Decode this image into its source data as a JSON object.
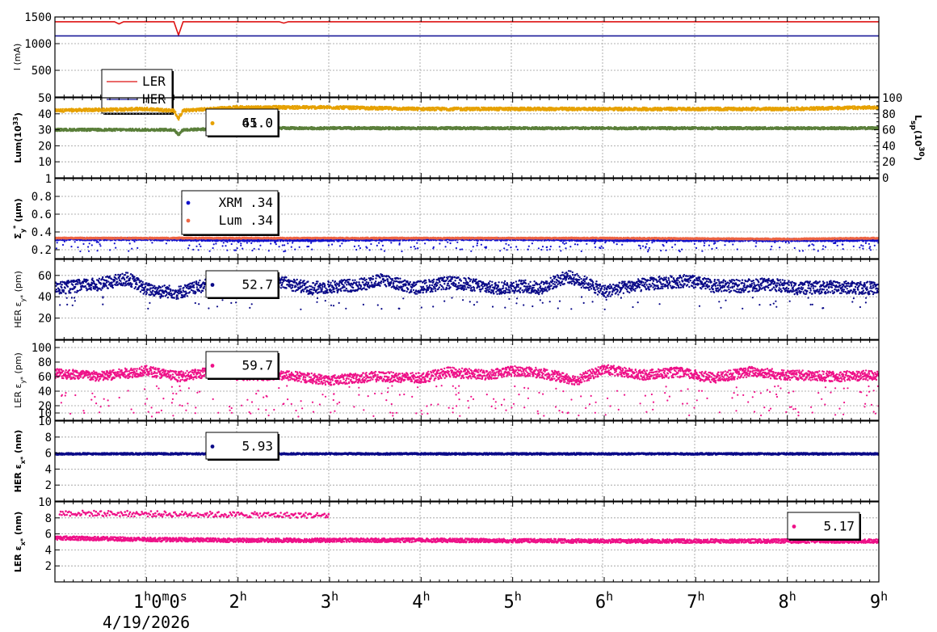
{
  "chart_data": [
    {
      "type": "line",
      "ylabel": "I (mA)",
      "ylim": [
        0,
        1500
      ],
      "yticks": [
        500,
        1000,
        1500
      ],
      "ytick_labels": [
        "500",
        "1000",
        "1500"
      ],
      "legend": {
        "placement": "bottom-left",
        "entries": [
          {
            "label": "LER",
            "color": "#dd1111"
          },
          {
            "label": "HER",
            "color": "#1a1a99"
          }
        ]
      },
      "series": [
        {
          "name": "LER",
          "color": "#dd1111",
          "points": [
            [
              0,
              1410
            ],
            [
              0.65,
              1410
            ],
            [
              0.7,
              1370
            ],
            [
              0.75,
              1410
            ],
            [
              1.3,
              1410
            ],
            [
              1.35,
              1160
            ],
            [
              1.4,
              1410
            ],
            [
              2.45,
              1410
            ],
            [
              2.5,
              1385
            ],
            [
              2.55,
              1410
            ],
            [
              9,
              1410
            ]
          ]
        },
        {
          "name": "HER",
          "color": "#1a1a99",
          "points": [
            [
              0,
              1145
            ],
            [
              9,
              1145
            ]
          ]
        }
      ]
    },
    {
      "type": "scatter",
      "ylabel": "Lum(10",
      "ylabel_sup": "33",
      "ylabel_end": ")",
      "ylim": [
        0,
        50
      ],
      "yticks": [
        10,
        20,
        30,
        40,
        50
      ],
      "ytick_labels": [
        "10",
        "20",
        "30",
        "40",
        "50"
      ],
      "y2label": "L",
      "y2label_sub": "sp",
      "y2label_mid": "(10",
      "y2label_sup": "30",
      "y2label_end": ")",
      "y2lim": [
        0,
        100
      ],
      "y2ticks": [
        0,
        20,
        40,
        60,
        80,
        100
      ],
      "y2tick_labels": [
        "0",
        "20",
        "40",
        "60",
        "80",
        "100"
      ],
      "legend": {
        "placement": "top-center",
        "entries": [
          {
            "label": "65.0",
            "color": "#e6a100"
          },
          {
            "label": "41.0",
            "color": "#e6a100"
          }
        ]
      },
      "series": [
        {
          "name": "65.0",
          "color": "#e6a100",
          "points": [
            [
              0,
              42
            ],
            [
              1,
              43
            ],
            [
              1.3,
              42
            ],
            [
              1.35,
              37
            ],
            [
              1.4,
              42
            ],
            [
              2,
              44
            ],
            [
              3,
              44
            ],
            [
              4,
              43
            ],
            [
              5,
              43
            ],
            [
              6,
              43
            ],
            [
              7,
              43
            ],
            [
              8,
              43
            ],
            [
              9,
              44
            ]
          ]
        },
        {
          "name": "41.0",
          "color": "#5a7f3a",
          "points": [
            [
              0,
              30
            ],
            [
              1,
              30
            ],
            [
              1.3,
              30
            ],
            [
              1.35,
              27
            ],
            [
              1.4,
              30
            ],
            [
              2,
              31
            ],
            [
              3,
              31
            ],
            [
              4,
              31
            ],
            [
              5,
              31
            ],
            [
              6,
              31
            ],
            [
              7,
              31
            ],
            [
              8,
              31
            ],
            [
              9,
              31
            ]
          ]
        }
      ]
    },
    {
      "type": "scatter",
      "ylabel": "Σ",
      "ylabel_sub": "y",
      "ylabel_sup": "*",
      "ylabel_end": " (μm)",
      "ylim": [
        0.1,
        1.0
      ],
      "yticks": [
        0.2,
        0.4,
        0.6,
        0.8,
        1.0
      ],
      "ytick_labels": [
        "0.2",
        "0.4",
        "0.6",
        "0.8",
        "1"
      ],
      "legend": {
        "placement": "top-center",
        "entries": [
          {
            "label": "XRM  .34",
            "color": "#1111cc"
          },
          {
            "label": "Lum  .34",
            "color": "#ee6644"
          }
        ]
      },
      "series": [
        {
          "name": "XRM  .34",
          "color": "#1111cc",
          "points": [
            [
              0,
              0.32
            ],
            [
              1,
              0.32
            ],
            [
              2,
              0.31
            ],
            [
              3,
              0.31
            ],
            [
              4,
              0.32
            ],
            [
              5,
              0.32
            ],
            [
              6,
              0.31
            ],
            [
              7,
              0.31
            ],
            [
              8,
              0.31
            ],
            [
              9,
              0.31
            ]
          ]
        },
        {
          "name": "Lum  .34",
          "color": "#ee6644",
          "points": [
            [
              0,
              0.33
            ],
            [
              2,
              0.33
            ],
            [
              4,
              0.33
            ],
            [
              6,
              0.33
            ],
            [
              8,
              0.32
            ],
            [
              9,
              0.33
            ]
          ]
        }
      ]
    },
    {
      "type": "scatter",
      "ylabel": "HER ε",
      "ylabel_sub": "y*",
      "ylabel_end": " (pm)",
      "ylim": [
        0,
        75
      ],
      "yticks": [
        20,
        40,
        60
      ],
      "ytick_labels": [
        "20",
        "40",
        "60"
      ],
      "legend": {
        "placement": "top-center",
        "entries": [
          {
            "label": "52.7",
            "color": "#0a0a88"
          }
        ]
      },
      "series": [
        {
          "name": "52.7",
          "color": "#0a0a88",
          "points": [
            [
              0,
              48
            ],
            [
              0.5,
              52
            ],
            [
              0.8,
              57
            ],
            [
              1.0,
              47
            ],
            [
              1.35,
              44
            ],
            [
              1.7,
              52
            ],
            [
              2.2,
              50
            ],
            [
              2.5,
              53
            ],
            [
              2.8,
              48
            ],
            [
              3.3,
              51
            ],
            [
              3.6,
              56
            ],
            [
              3.9,
              48
            ],
            [
              4.3,
              53
            ],
            [
              4.5,
              52
            ],
            [
              4.8,
              48
            ],
            [
              5.1,
              50
            ],
            [
              5.3,
              48
            ],
            [
              5.6,
              59
            ],
            [
              5.8,
              53
            ],
            [
              6.0,
              45
            ],
            [
              6.3,
              50
            ],
            [
              6.6,
              53
            ],
            [
              6.9,
              55
            ],
            [
              7.2,
              50
            ],
            [
              7.5,
              50
            ],
            [
              7.8,
              52
            ],
            [
              8.1,
              48
            ],
            [
              8.5,
              49
            ],
            [
              9.0,
              48
            ]
          ]
        }
      ]
    },
    {
      "type": "scatter",
      "ylabel": "LER ε",
      "ylabel_sub": "y*",
      "ylabel_end": " (pm)",
      "ylim": [
        0,
        110
      ],
      "yticks": [
        10,
        20,
        40,
        60,
        80,
        100
      ],
      "ytick_labels": [
        "10",
        "20",
        "40",
        "60",
        "80",
        "100"
      ],
      "legend": {
        "placement": "top-center",
        "entries": [
          {
            "label": "59.7",
            "color": "#ee1188"
          }
        ]
      },
      "series": [
        {
          "name": "59.7",
          "color": "#ee1188",
          "points": [
            [
              0,
              65
            ],
            [
              0.5,
              60
            ],
            [
              0.8,
              65
            ],
            [
              1.0,
              68
            ],
            [
              1.35,
              60
            ],
            [
              1.7,
              66
            ],
            [
              2.0,
              62
            ],
            [
              2.5,
              62
            ],
            [
              3.0,
              55
            ],
            [
              3.5,
              60
            ],
            [
              4.0,
              58
            ],
            [
              4.3,
              66
            ],
            [
              4.7,
              62
            ],
            [
              5.0,
              68
            ],
            [
              5.3,
              65
            ],
            [
              5.7,
              55
            ],
            [
              6.0,
              70
            ],
            [
              6.4,
              62
            ],
            [
              6.8,
              66
            ],
            [
              7.2,
              58
            ],
            [
              7.6,
              67
            ],
            [
              8.0,
              62
            ],
            [
              8.5,
              60
            ],
            [
              9.0,
              62
            ]
          ]
        }
      ]
    },
    {
      "type": "scatter",
      "ylabel": "HER ε",
      "ylabel_sub": "x*",
      "ylabel_end": " (nm)",
      "ylim": [
        0,
        10
      ],
      "yticks": [
        2,
        4,
        6,
        8,
        10
      ],
      "ytick_labels": [
        "2",
        "4",
        "6",
        "8",
        "10"
      ],
      "legend": {
        "placement": "top-center",
        "entries": [
          {
            "label": "5.93",
            "color": "#0a0a88"
          }
        ]
      },
      "series": [
        {
          "name": "5.93",
          "color": "#0a0a88",
          "points": [
            [
              0,
              5.9
            ],
            [
              3,
              5.9
            ],
            [
              6,
              5.9
            ],
            [
              9,
              5.9
            ]
          ]
        }
      ]
    },
    {
      "type": "scatter",
      "ylabel": "LER ε",
      "ylabel_sub": "x*",
      "ylabel_end": " (nm)",
      "ylim": [
        0,
        10
      ],
      "yticks": [
        2,
        4,
        6,
        8,
        10
      ],
      "ytick_labels": [
        "2",
        "4",
        "6",
        "8",
        "10"
      ],
      "legend": {
        "placement": "right",
        "entries": [
          {
            "label": "5.17",
            "color": "#ee1188"
          }
        ]
      },
      "series": [
        {
          "name": "5.17",
          "color": "#ee1188",
          "points": [
            [
              0,
              5.5
            ],
            [
              1,
              5.3
            ],
            [
              2,
              5.2
            ],
            [
              4,
              5.2
            ],
            [
              6,
              5.1
            ],
            [
              8,
              5.1
            ],
            [
              9,
              5.1
            ]
          ]
        },
        {
          "name": "",
          "color": "#ee1188",
          "points": [
            [
              0.05,
              8.6
            ],
            [
              3.0,
              8.3
            ]
          ]
        }
      ]
    }
  ],
  "x_axis": {
    "xlim": [
      0,
      9
    ],
    "ticks": [
      1,
      2,
      3,
      4,
      5,
      6,
      7,
      8,
      9
    ],
    "tick_labels": [
      "1",
      "2",
      "3",
      "4",
      "5",
      "6",
      "7",
      "8",
      "9"
    ],
    "unit": "h",
    "origin_label_parts": [
      "1",
      "h",
      "0",
      "m",
      "0",
      "s"
    ],
    "date_label": "4/19/2026"
  },
  "grid": true
}
